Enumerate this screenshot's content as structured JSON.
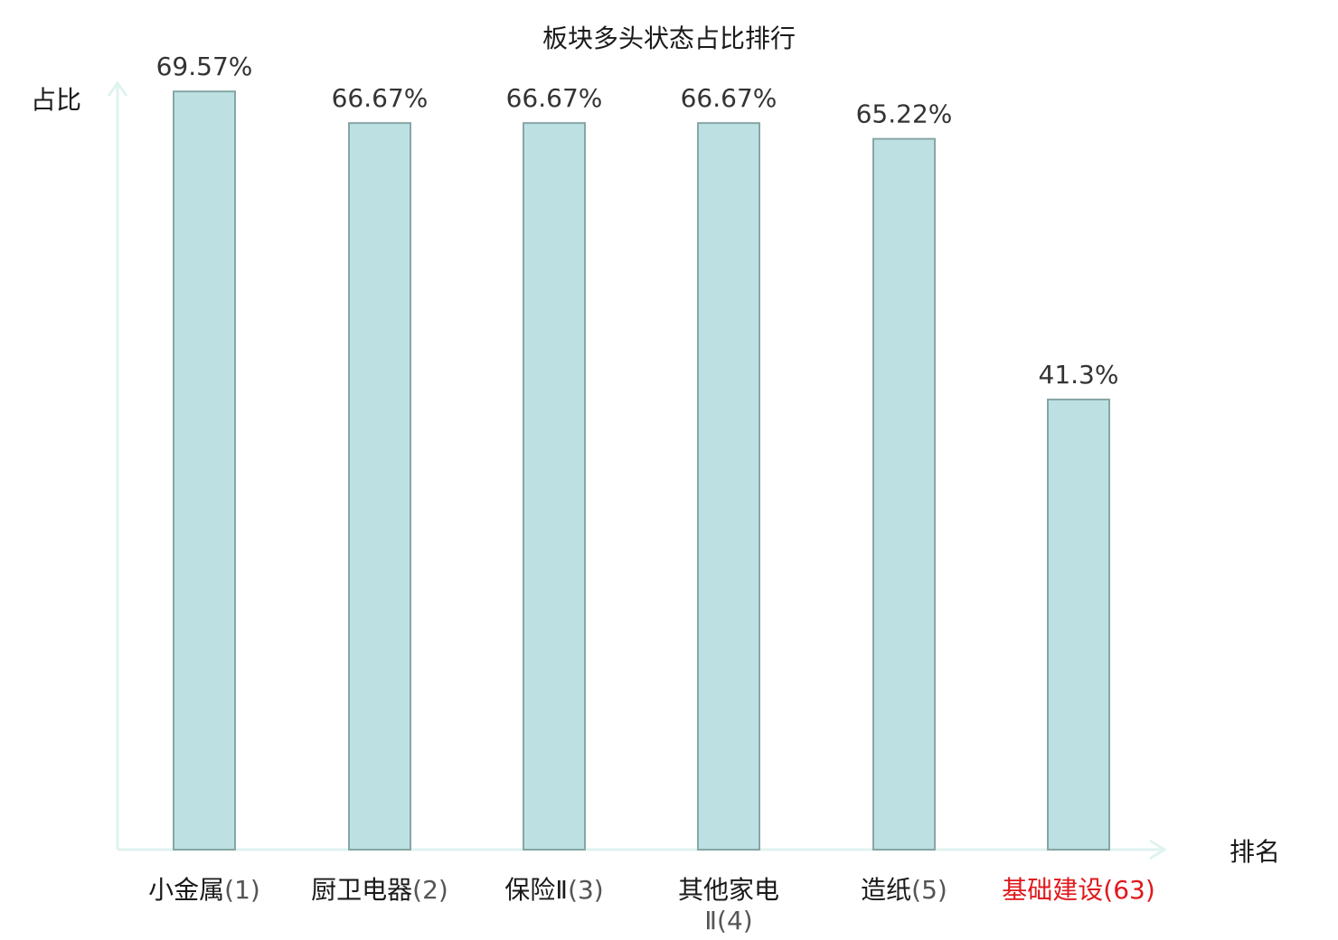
{
  "chart_data": {
    "type": "bar",
    "title": "板块多头状态占比排行",
    "ylabel": "占比",
    "xlabel": "排名",
    "ylim": [
      0,
      70
    ],
    "grid": false,
    "categories": [
      {
        "name": "小金属",
        "rank": "(1)"
      },
      {
        "name": "厨卫电器",
        "rank": "(2)"
      },
      {
        "name": "保险Ⅱ",
        "rank": "(3)"
      },
      {
        "name": "其他家电",
        "name2": "Ⅱ",
        "rank": "(4)"
      },
      {
        "name": "造纸",
        "rank": "(5)"
      },
      {
        "name": "基础建设",
        "rank": "(63)",
        "highlight": true
      }
    ],
    "values": [
      69.57,
      66.67,
      66.67,
      66.67,
      65.22,
      41.3
    ],
    "value_labels": [
      "69.57%",
      "66.67%",
      "66.67%",
      "66.67%",
      "65.22%",
      "41.3%"
    ],
    "colors": {
      "bar_fill": "#bde1e3",
      "bar_stroke": "#87a6a6",
      "axis": "#dff3ef",
      "highlight": "#e0191c"
    }
  }
}
